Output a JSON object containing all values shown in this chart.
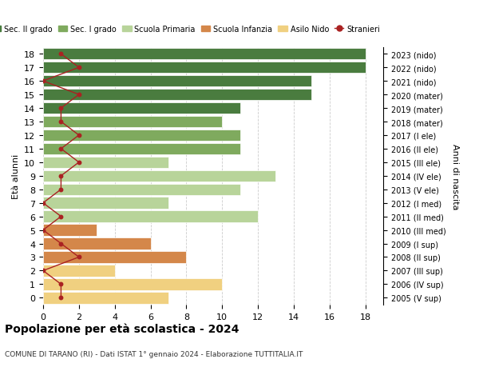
{
  "ages": [
    18,
    17,
    16,
    15,
    14,
    13,
    12,
    11,
    10,
    9,
    8,
    7,
    6,
    5,
    4,
    3,
    2,
    1,
    0
  ],
  "right_labels": [
    "2005 (V sup)",
    "2006 (IV sup)",
    "2007 (III sup)",
    "2008 (II sup)",
    "2009 (I sup)",
    "2010 (III med)",
    "2011 (II med)",
    "2012 (I med)",
    "2013 (V ele)",
    "2014 (IV ele)",
    "2015 (III ele)",
    "2016 (II ele)",
    "2017 (I ele)",
    "2018 (mater)",
    "2019 (mater)",
    "2020 (mater)",
    "2021 (nido)",
    "2022 (nido)",
    "2023 (nido)"
  ],
  "bar_values": [
    18,
    18,
    15,
    15,
    11,
    10,
    11,
    11,
    7,
    13,
    11,
    7,
    12,
    3,
    6,
    8,
    4,
    10,
    7
  ],
  "bar_colors": [
    "#4a7c3f",
    "#4a7c3f",
    "#4a7c3f",
    "#4a7c3f",
    "#4a7c3f",
    "#7faa5e",
    "#7faa5e",
    "#7faa5e",
    "#b8d49a",
    "#b8d49a",
    "#b8d49a",
    "#b8d49a",
    "#b8d49a",
    "#d4874a",
    "#d4874a",
    "#d4874a",
    "#f0d080",
    "#f0d080",
    "#f0d080"
  ],
  "stranieri_x": [
    1,
    2,
    0,
    2,
    1,
    1,
    2,
    1,
    2,
    1,
    1,
    0,
    1,
    0,
    1,
    2,
    0,
    1,
    1
  ],
  "stranieri_color": "#aa2222",
  "title": "Popolazione per età scolastica - 2024",
  "subtitle": "COMUNE DI TARANO (RI) - Dati ISTAT 1° gennaio 2024 - Elaborazione TUTTITALIA.IT",
  "ylabel_left": "Età alunni",
  "ylabel_right": "Anni di nascita",
  "xlim": [
    0,
    19
  ],
  "grid_color": "#cccccc",
  "legend_items": [
    {
      "label": "Sec. II grado",
      "color": "#4a7c3f"
    },
    {
      "label": "Sec. I grado",
      "color": "#7faa5e"
    },
    {
      "label": "Scuola Primaria",
      "color": "#b8d49a"
    },
    {
      "label": "Scuola Infanzia",
      "color": "#d4874a"
    },
    {
      "label": "Asilo Nido",
      "color": "#f0d080"
    },
    {
      "label": "Stranieri",
      "color": "#aa2222"
    }
  ]
}
